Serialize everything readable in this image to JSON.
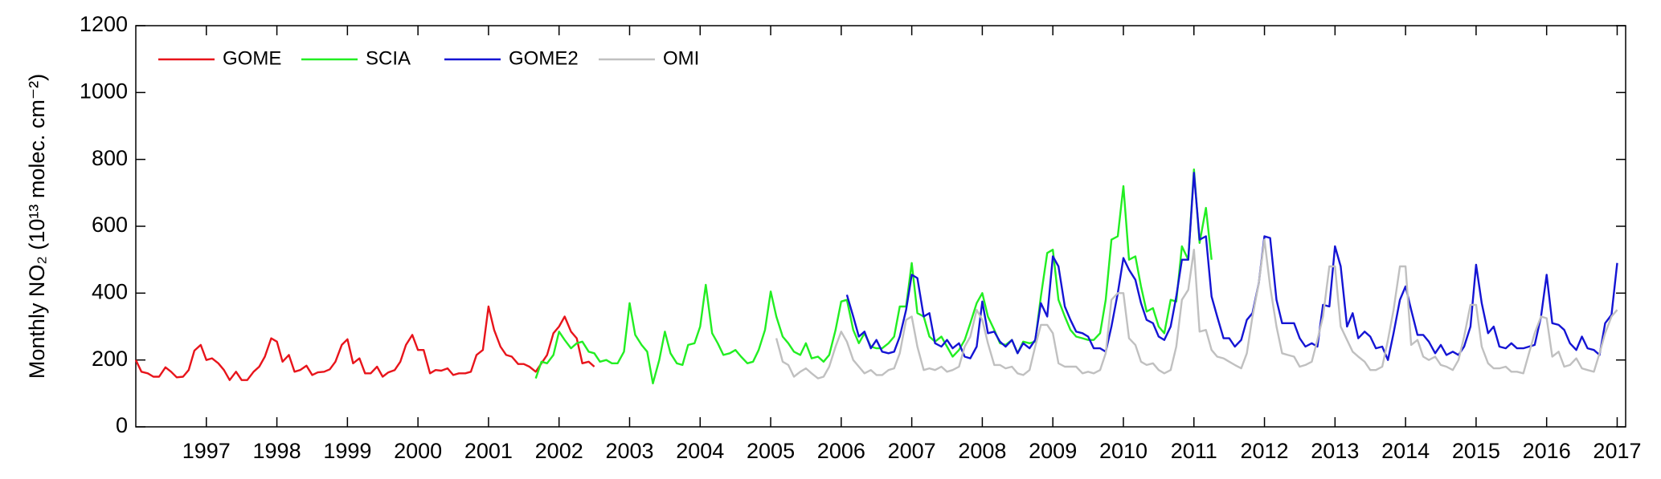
{
  "chart_data": {
    "type": "line",
    "ylabel": "Monthly NO₂ (10¹³ molec. cm⁻²)",
    "xlim": [
      1996,
      2017.12
    ],
    "xticks": [
      1997,
      1998,
      1999,
      2000,
      2001,
      2002,
      2003,
      2004,
      2005,
      2006,
      2007,
      2008,
      2009,
      2010,
      2011,
      2012,
      2013,
      2014,
      2015,
      2016,
      2017
    ],
    "ylim": [
      0,
      1200
    ],
    "yticks": [
      0,
      200,
      400,
      600,
      800,
      1000,
      1200
    ],
    "legend": "top-left",
    "series": [
      {
        "name": "GOME",
        "color": "#e8141b",
        "x": [
          1996.0,
          1996.08,
          1996.17,
          1996.25,
          1996.33,
          1996.42,
          1996.5,
          1996.58,
          1996.67,
          1996.75,
          1996.83,
          1996.92,
          1997.0,
          1997.08,
          1997.17,
          1997.25,
          1997.33,
          1997.42,
          1997.5,
          1997.58,
          1997.67,
          1997.75,
          1997.83,
          1997.92,
          1998.0,
          1998.08,
          1998.17,
          1998.25,
          1998.33,
          1998.42,
          1998.5,
          1998.58,
          1998.67,
          1998.75,
          1998.83,
          1998.92,
          1999.0,
          1999.08,
          1999.17,
          1999.25,
          1999.33,
          1999.42,
          1999.5,
          1999.58,
          1999.67,
          1999.75,
          1999.83,
          1999.92,
          2000.0,
          2000.08,
          2000.17,
          2000.25,
          2000.33,
          2000.42,
          2000.5,
          2000.58,
          2000.67,
          2000.75,
          2000.83,
          2000.92,
          2001.0,
          2001.08,
          2001.17,
          2001.25,
          2001.33,
          2001.42,
          2001.5,
          2001.58,
          2001.67,
          2001.75,
          2001.83,
          2001.92,
          2002.0,
          2002.08,
          2002.17,
          2002.25,
          2002.33,
          2002.42,
          2002.5
        ],
        "values": [
          200,
          165,
          160,
          150,
          150,
          178,
          165,
          148,
          150,
          170,
          228,
          245,
          200,
          205,
          190,
          170,
          140,
          165,
          140,
          140,
          165,
          180,
          210,
          265,
          255,
          195,
          215,
          165,
          170,
          183,
          155,
          163,
          165,
          172,
          195,
          245,
          262,
          190,
          205,
          160,
          160,
          180,
          150,
          163,
          170,
          195,
          245,
          275,
          230,
          230,
          160,
          170,
          168,
          175,
          155,
          160,
          160,
          165,
          215,
          230,
          360,
          290,
          240,
          215,
          210,
          188,
          188,
          180,
          165,
          190,
          215,
          280,
          300,
          330,
          285,
          265,
          190,
          195,
          180
        ]
      },
      {
        "name": "SCIA",
        "color": "#22ee22",
        "x": [
          2001.67,
          2001.75,
          2001.83,
          2001.92,
          2002.0,
          2002.08,
          2002.17,
          2002.25,
          2002.33,
          2002.42,
          2002.5,
          2002.58,
          2002.67,
          2002.75,
          2002.83,
          2002.92,
          2003.0,
          2003.08,
          2003.17,
          2003.25,
          2003.33,
          2003.42,
          2003.5,
          2003.58,
          2003.67,
          2003.75,
          2003.83,
          2003.92,
          2004.0,
          2004.08,
          2004.17,
          2004.25,
          2004.33,
          2004.42,
          2004.5,
          2004.58,
          2004.67,
          2004.75,
          2004.83,
          2004.92,
          2005.0,
          2005.08,
          2005.17,
          2005.25,
          2005.33,
          2005.42,
          2005.5,
          2005.58,
          2005.67,
          2005.75,
          2005.83,
          2005.92,
          2006.0,
          2006.08,
          2006.17,
          2006.25,
          2006.33,
          2006.42,
          2006.5,
          2006.58,
          2006.67,
          2006.75,
          2006.83,
          2006.92,
          2007.0,
          2007.08,
          2007.17,
          2007.25,
          2007.33,
          2007.42,
          2007.5,
          2007.58,
          2007.67,
          2007.75,
          2007.83,
          2007.92,
          2008.0,
          2008.08,
          2008.17,
          2008.25,
          2008.33,
          2008.42,
          2008.5,
          2008.58,
          2008.67,
          2008.75,
          2008.83,
          2008.92,
          2009.0,
          2009.08,
          2009.17,
          2009.25,
          2009.33,
          2009.42,
          2009.5,
          2009.58,
          2009.67,
          2009.75,
          2009.83,
          2009.92,
          2010.0,
          2010.08,
          2010.17,
          2010.25,
          2010.33,
          2010.42,
          2010.5,
          2010.58,
          2010.67,
          2010.75,
          2010.83,
          2010.92,
          2011.0,
          2011.08,
          2011.17,
          2011.25
        ],
        "values": [
          145,
          195,
          190,
          215,
          285,
          260,
          235,
          250,
          255,
          225,
          220,
          195,
          200,
          190,
          190,
          225,
          370,
          275,
          245,
          225,
          130,
          200,
          285,
          220,
          190,
          185,
          245,
          250,
          300,
          425,
          280,
          250,
          215,
          220,
          230,
          210,
          190,
          195,
          230,
          290,
          405,
          330,
          270,
          250,
          225,
          215,
          250,
          205,
          210,
          195,
          215,
          290,
          375,
          380,
          290,
          250,
          280,
          240,
          235,
          235,
          250,
          270,
          360,
          360,
          490,
          340,
          330,
          270,
          255,
          270,
          240,
          210,
          230,
          260,
          310,
          370,
          400,
          330,
          290,
          250,
          245,
          260,
          220,
          255,
          250,
          255,
          390,
          520,
          530,
          380,
          330,
          290,
          270,
          265,
          260,
          260,
          280,
          380,
          560,
          570,
          720,
          500,
          510,
          420,
          345,
          355,
          300,
          280,
          380,
          375,
          540,
          500,
          770,
          550,
          655,
          500
        ]
      },
      {
        "name": "GOME2",
        "color": "#1414d4",
        "x": [
          2006.08,
          2006.17,
          2006.25,
          2006.33,
          2006.42,
          2006.5,
          2006.58,
          2006.67,
          2006.75,
          2006.83,
          2006.92,
          2007.0,
          2007.08,
          2007.17,
          2007.25,
          2007.33,
          2007.42,
          2007.5,
          2007.58,
          2007.67,
          2007.75,
          2007.83,
          2007.92,
          2008.0,
          2008.08,
          2008.17,
          2008.25,
          2008.33,
          2008.42,
          2008.5,
          2008.58,
          2008.67,
          2008.75,
          2008.83,
          2008.92,
          2009.0,
          2009.08,
          2009.17,
          2009.25,
          2009.33,
          2009.42,
          2009.5,
          2009.58,
          2009.67,
          2009.75,
          2009.83,
          2009.92,
          2010.0,
          2010.08,
          2010.17,
          2010.25,
          2010.33,
          2010.42,
          2010.5,
          2010.58,
          2010.67,
          2010.75,
          2010.83,
          2010.92,
          2011.0,
          2011.08,
          2011.17,
          2011.25,
          2011.33,
          2011.42,
          2011.5,
          2011.58,
          2011.67,
          2011.75,
          2011.83,
          2011.92,
          2012.0,
          2012.08,
          2012.17,
          2012.25,
          2012.33,
          2012.42,
          2012.5,
          2012.58,
          2012.67,
          2012.75,
          2012.83,
          2012.92,
          2013.0,
          2013.08,
          2013.17,
          2013.25,
          2013.33,
          2013.42,
          2013.5,
          2013.58,
          2013.67,
          2013.75,
          2013.83,
          2013.92,
          2014.0,
          2014.08,
          2014.17,
          2014.25,
          2014.33,
          2014.42,
          2014.5,
          2014.58,
          2014.67,
          2014.75,
          2014.83,
          2014.92,
          2015.0,
          2015.08,
          2015.17,
          2015.25,
          2015.33,
          2015.42,
          2015.5,
          2015.58,
          2015.67,
          2015.75,
          2015.83,
          2015.92,
          2016.0,
          2016.08,
          2016.17,
          2016.25,
          2016.33,
          2016.42,
          2016.5,
          2016.58,
          2016.67,
          2016.75,
          2016.83,
          2016.92,
          2017.0
        ],
        "values": [
          395,
          330,
          270,
          285,
          235,
          260,
          225,
          220,
          225,
          270,
          350,
          455,
          445,
          330,
          340,
          250,
          240,
          260,
          235,
          250,
          210,
          205,
          240,
          375,
          280,
          285,
          255,
          240,
          260,
          220,
          250,
          235,
          260,
          370,
          330,
          510,
          480,
          360,
          320,
          285,
          280,
          270,
          235,
          235,
          225,
          300,
          400,
          505,
          470,
          440,
          370,
          320,
          310,
          270,
          260,
          300,
          390,
          500,
          500,
          760,
          560,
          570,
          390,
          330,
          265,
          265,
          240,
          260,
          320,
          340,
          430,
          570,
          565,
          380,
          310,
          310,
          310,
          265,
          240,
          250,
          240,
          365,
          360,
          540,
          480,
          300,
          340,
          265,
          285,
          270,
          235,
          240,
          200,
          280,
          380,
          420,
          350,
          275,
          275,
          255,
          220,
          245,
          215,
          225,
          215,
          240,
          300,
          485,
          370,
          280,
          300,
          240,
          235,
          250,
          235,
          235,
          240,
          245,
          330,
          455,
          310,
          305,
          290,
          250,
          230,
          270,
          235,
          230,
          215,
          310,
          335,
          490
        ]
      },
      {
        "name": "OMI",
        "color": "#c0c0c0",
        "x": [
          2005.08,
          2005.17,
          2005.25,
          2005.33,
          2005.42,
          2005.5,
          2005.58,
          2005.67,
          2005.75,
          2005.83,
          2005.92,
          2006.0,
          2006.08,
          2006.17,
          2006.25,
          2006.33,
          2006.42,
          2006.5,
          2006.58,
          2006.67,
          2006.75,
          2006.83,
          2006.92,
          2007.0,
          2007.08,
          2007.17,
          2007.25,
          2007.33,
          2007.42,
          2007.5,
          2007.58,
          2007.67,
          2007.75,
          2007.83,
          2007.92,
          2008.0,
          2008.08,
          2008.17,
          2008.25,
          2008.33,
          2008.42,
          2008.5,
          2008.58,
          2008.67,
          2008.75,
          2008.83,
          2008.92,
          2009.0,
          2009.08,
          2009.17,
          2009.25,
          2009.33,
          2009.42,
          2009.5,
          2009.58,
          2009.67,
          2009.75,
          2009.83,
          2009.92,
          2010.0,
          2010.08,
          2010.17,
          2010.25,
          2010.33,
          2010.42,
          2010.5,
          2010.58,
          2010.67,
          2010.75,
          2010.83,
          2010.92,
          2011.0,
          2011.08,
          2011.17,
          2011.25,
          2011.33,
          2011.42,
          2011.5,
          2011.58,
          2011.67,
          2011.75,
          2011.83,
          2011.92,
          2012.0,
          2012.08,
          2012.17,
          2012.25,
          2012.33,
          2012.42,
          2012.5,
          2012.58,
          2012.67,
          2012.75,
          2012.83,
          2012.92,
          2013.0,
          2013.08,
          2013.17,
          2013.25,
          2013.33,
          2013.42,
          2013.5,
          2013.58,
          2013.67,
          2013.75,
          2013.83,
          2013.92,
          2014.0,
          2014.08,
          2014.17,
          2014.25,
          2014.33,
          2014.42,
          2014.5,
          2014.58,
          2014.67,
          2014.75,
          2014.83,
          2014.92,
          2015.0,
          2015.08,
          2015.17,
          2015.25,
          2015.33,
          2015.42,
          2015.5,
          2015.58,
          2015.67,
          2015.75,
          2015.83,
          2015.92,
          2016.0,
          2016.08,
          2016.17,
          2016.25,
          2016.33,
          2016.42,
          2016.5,
          2016.58,
          2016.67,
          2016.75,
          2016.83,
          2016.92,
          2017.0
        ],
        "values": [
          265,
          195,
          185,
          150,
          165,
          175,
          160,
          145,
          150,
          180,
          240,
          285,
          255,
          200,
          180,
          160,
          170,
          155,
          155,
          170,
          175,
          220,
          320,
          330,
          240,
          170,
          175,
          170,
          180,
          165,
          170,
          180,
          240,
          270,
          350,
          320,
          250,
          185,
          185,
          175,
          180,
          160,
          155,
          170,
          240,
          305,
          305,
          280,
          190,
          180,
          180,
          180,
          160,
          165,
          160,
          170,
          220,
          380,
          400,
          400,
          265,
          245,
          195,
          185,
          190,
          170,
          160,
          170,
          240,
          380,
          410,
          530,
          285,
          290,
          230,
          210,
          205,
          195,
          185,
          175,
          220,
          330,
          430,
          560,
          420,
          300,
          220,
          215,
          210,
          180,
          185,
          195,
          260,
          330,
          480,
          480,
          300,
          260,
          225,
          210,
          195,
          170,
          170,
          180,
          260,
          350,
          480,
          480,
          245,
          260,
          210,
          200,
          210,
          185,
          180,
          170,
          200,
          270,
          365,
          365,
          240,
          190,
          175,
          175,
          180,
          165,
          165,
          160,
          220,
          280,
          330,
          325,
          210,
          225,
          180,
          185,
          205,
          175,
          170,
          165,
          220,
          280,
          330,
          350
        ]
      }
    ]
  }
}
